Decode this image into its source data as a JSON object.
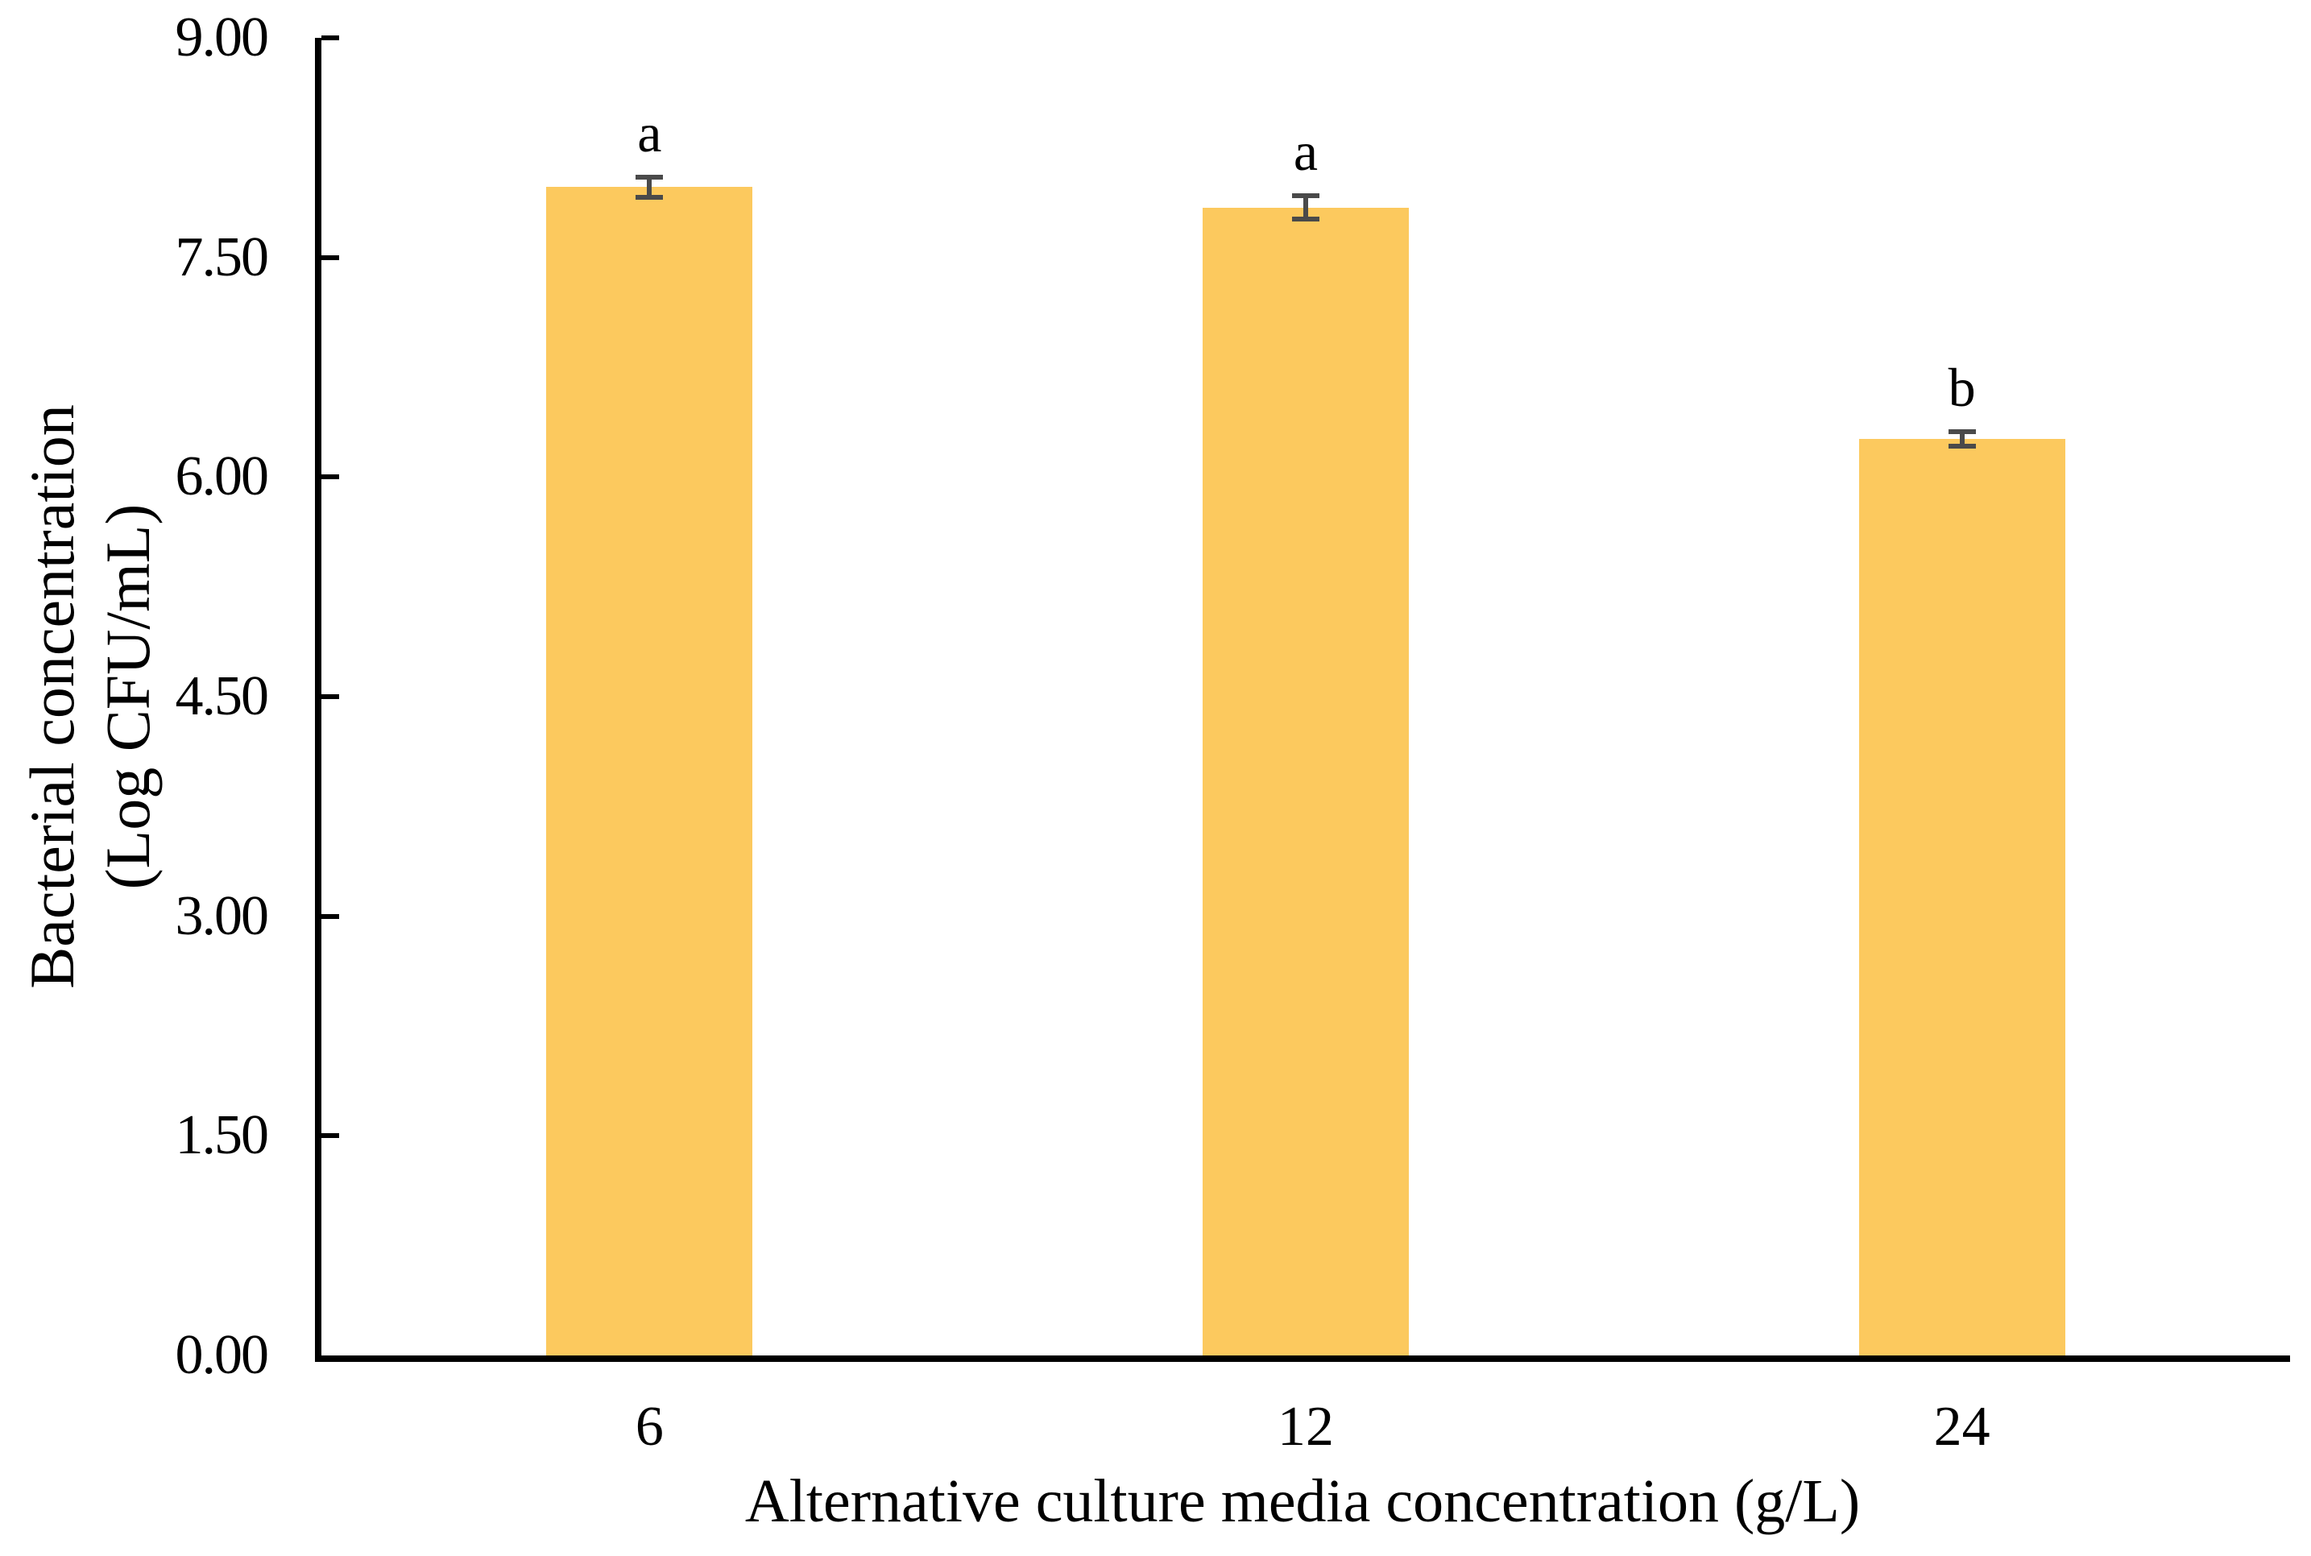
{
  "chart_data": {
    "type": "bar",
    "title": "",
    "xlabel": "Alternative culture media concentration (g/L)",
    "ylabel": "Bacterial concentration (Log CFU/mL)",
    "ylabel_lines": [
      "Bacterial concentration",
      "(Log CFU/mL)"
    ],
    "categories": [
      "6",
      "12",
      "24"
    ],
    "values": [
      7.98,
      7.84,
      6.26
    ],
    "errors": [
      0.07,
      0.08,
      0.05
    ],
    "bar_letters": [
      "a",
      "a",
      "b"
    ],
    "ylim": [
      0,
      9
    ],
    "ytick_interval": 1.5,
    "ytick_values": [
      0,
      1.5,
      3,
      4.5,
      6,
      7.5,
      9
    ],
    "ytick_labels": [
      "0.00",
      "1.50",
      "3.00",
      "4.50",
      "6.00",
      "7.50",
      "9.00"
    ],
    "grid": false,
    "legend": false,
    "bar_color": "#FCC95E",
    "error_bar_color": "#4A4A4A",
    "axis_color": "#000000",
    "text_color": "#000000"
  }
}
